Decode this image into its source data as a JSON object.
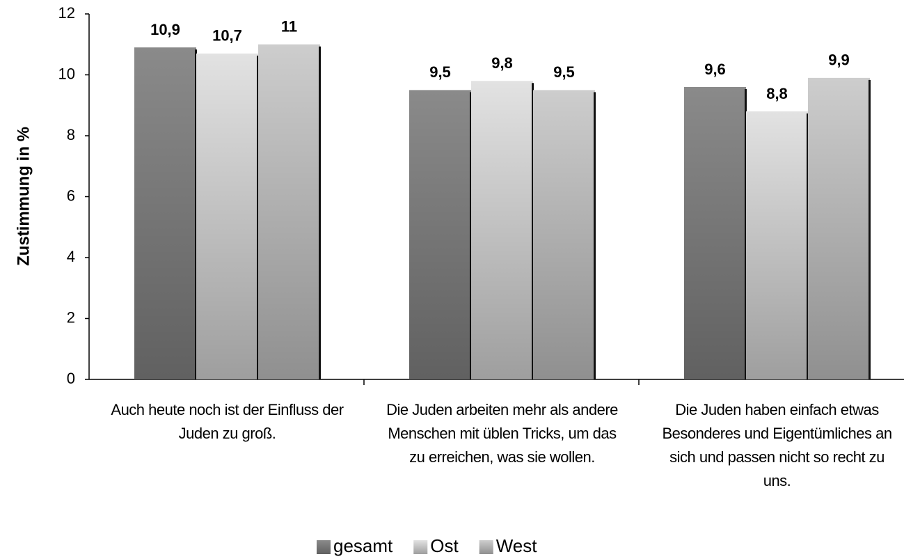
{
  "chart_data": {
    "type": "bar",
    "y_label": "Zustimmung in %",
    "categories": [
      "Auch heute noch ist der Einfluss der Juden zu groß.",
      "Die Juden arbeiten mehr als andere Menschen mit üblen Tricks, um das zu erreichen, was sie wollen.",
      "Die Juden haben einfach etwas Besonderes und Eigentümliches an sich und passen nicht so recht zu uns."
    ],
    "series": [
      {
        "name": "gesamt",
        "color": "#8a8a8a",
        "values": [
          10.9,
          9.5,
          9.6
        ],
        "value_labels": [
          "10,9",
          "9,5",
          "9,6"
        ]
      },
      {
        "name": "Ost",
        "color": "#e2e2e2",
        "values": [
          10.7,
          9.8,
          8.8
        ],
        "value_labels": [
          "10,7",
          "9,8",
          "8,8"
        ]
      },
      {
        "name": "West",
        "color": "#cdcdcd",
        "values": [
          11,
          9.5,
          9.9
        ],
        "value_labels": [
          "11",
          "9,5",
          "9,9"
        ]
      }
    ],
    "ylim": [
      0,
      12
    ],
    "yticks": [
      0,
      2,
      4,
      6,
      8,
      10,
      12
    ],
    "grid": false
  }
}
